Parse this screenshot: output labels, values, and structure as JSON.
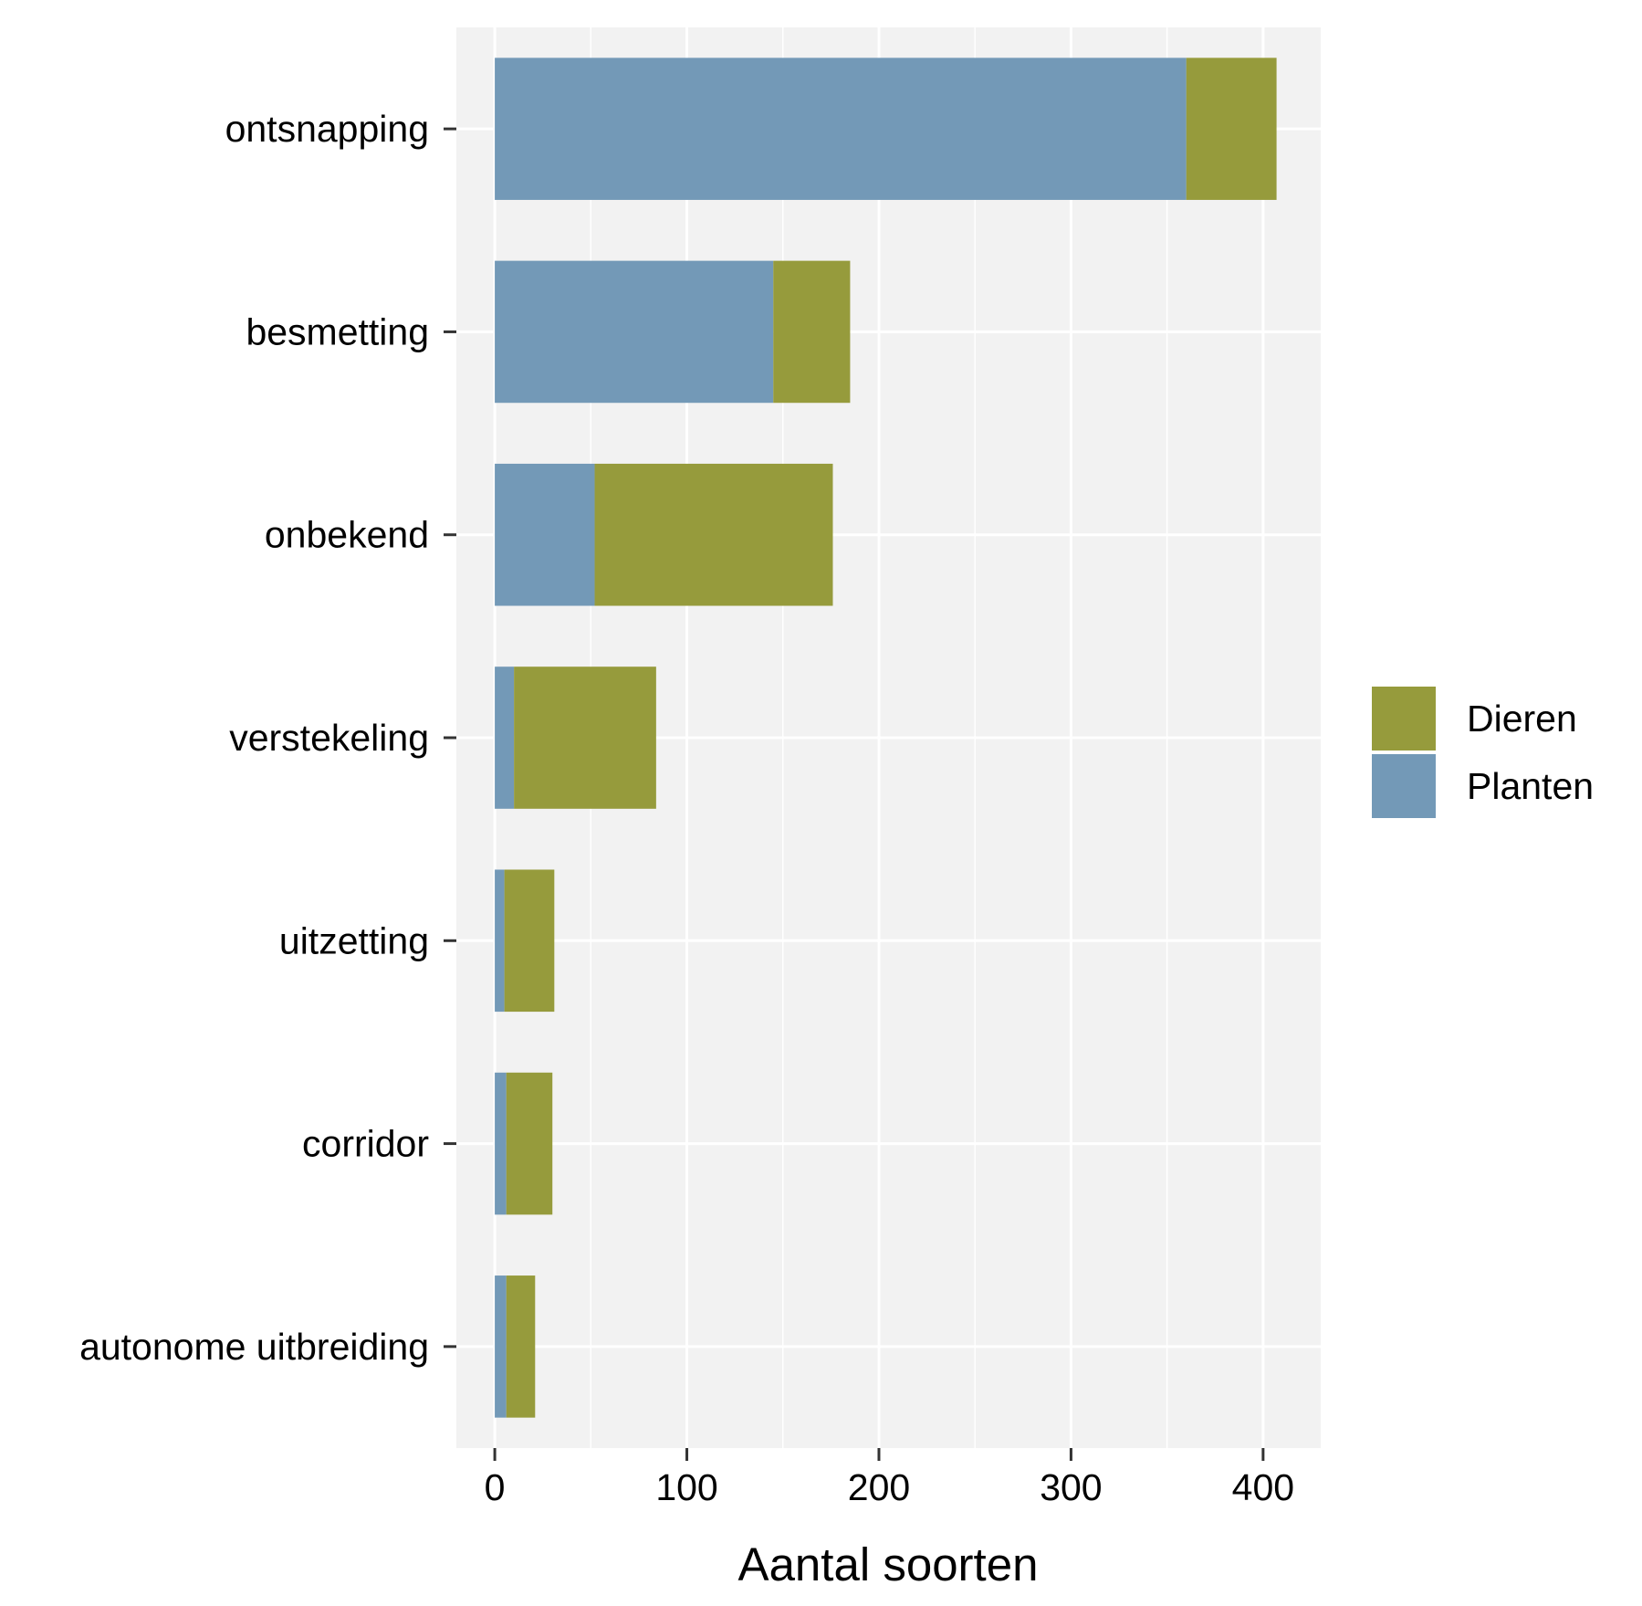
{
  "chart_data": {
    "type": "bar",
    "orientation": "horizontal",
    "stacked": true,
    "categories": [
      "ontsnapping",
      "besmetting",
      "onbekend",
      "verstekeling",
      "uitzetting",
      "corridor",
      "autonome uitbreiding"
    ],
    "series": [
      {
        "name": "Planten",
        "color": "#7399b7",
        "values": [
          360,
          145,
          52,
          10,
          5,
          6,
          6
        ]
      },
      {
        "name": "Dieren",
        "color": "#969b3c",
        "values": [
          47,
          40,
          124,
          74,
          26,
          24,
          15
        ]
      }
    ],
    "xlabel": "Aantal soorten",
    "ylabel": "",
    "xlim": [
      -20,
      430
    ],
    "xticks": [
      0,
      100,
      200,
      300,
      400
    ],
    "grid": true,
    "panel_background": "#f2f2f2",
    "legend": {
      "position": "right",
      "entries": [
        "Dieren",
        "Planten"
      ]
    }
  }
}
